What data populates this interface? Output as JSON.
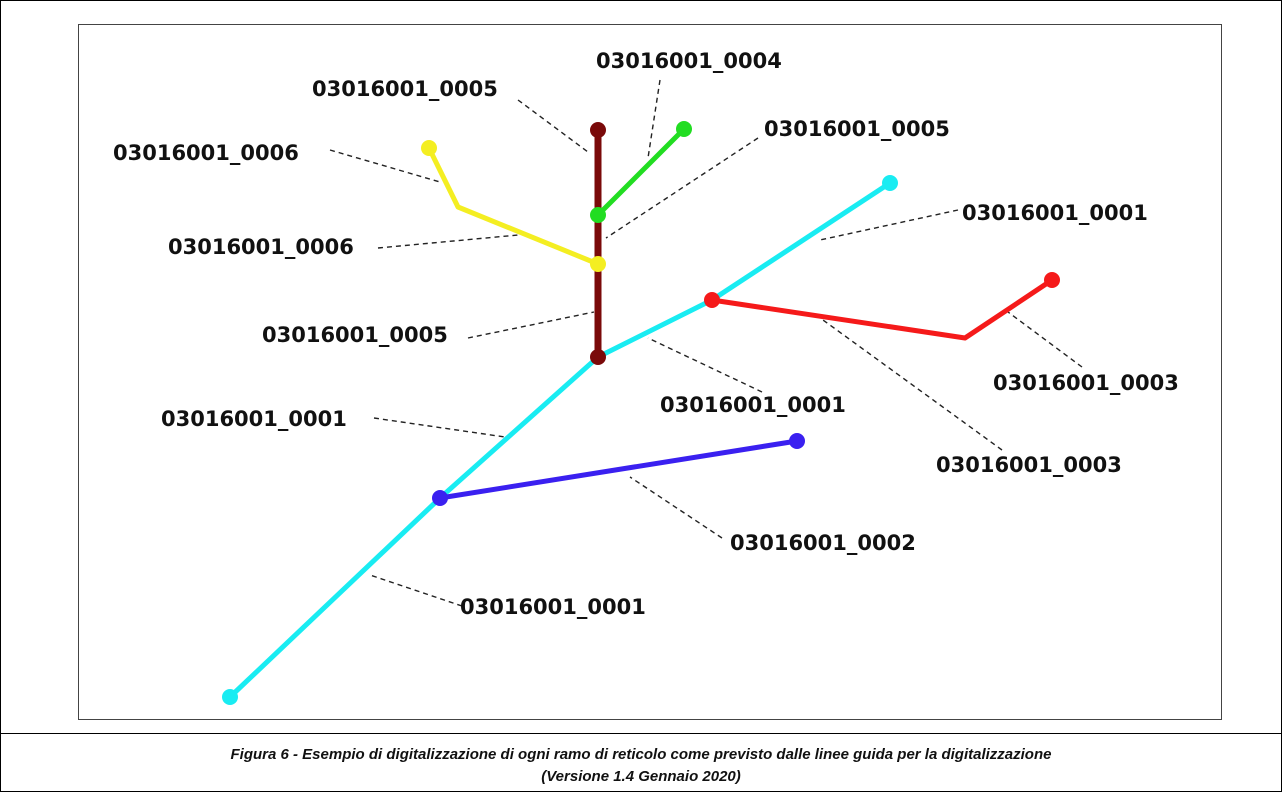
{
  "segments": [
    {
      "name": "cyan-main-line",
      "color": "#19ecf2"
    },
    {
      "name": "brown-line",
      "color": "#7a0a0a"
    },
    {
      "name": "green-line",
      "color": "#22dd22"
    },
    {
      "name": "yellow-line",
      "color": "#f4ee22"
    },
    {
      "name": "red-line",
      "color": "#f51a1a"
    },
    {
      "name": "blue-line",
      "color": "#3a20f0"
    }
  ],
  "labels": [
    "03016001_0005",
    "03016001_0004",
    "03016001_0006",
    "03016001_0005",
    "03016001_0001",
    "03016001_0006",
    "03016001_0005",
    "03016001_0003",
    "03016001_0001",
    "03016001_0001",
    "03016001_0003",
    "03016001_0002",
    "03016001_0001"
  ],
  "caption": {
    "line1": "Figura 6 - Esempio di digitalizzazione di ogni ramo di reticolo come previsto dalle linee guida per la digitalizzazione",
    "line2": "(Versione 1.4 Gennaio 2020)"
  }
}
